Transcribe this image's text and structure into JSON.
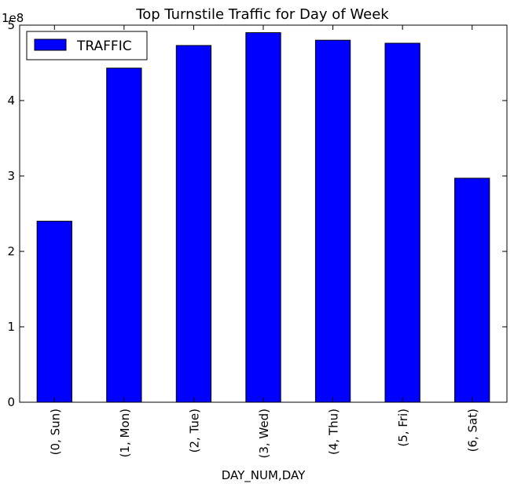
{
  "chart_data": {
    "type": "bar",
    "title": "Top Turnstile Traffic for Day of Week",
    "xlabel": "DAY_NUM,DAY",
    "ylabel": "",
    "y_offset_label": "1e8",
    "ylim": [
      0,
      5
    ],
    "y_ticks": [
      "0",
      "1",
      "2",
      "3",
      "4",
      "5"
    ],
    "categories": [
      "(0, Sun)",
      "(1, Mon)",
      "(2, Tue)",
      "(3, Wed)",
      "(4, Thu)",
      "(5, Fri)",
      "(6, Sat)"
    ],
    "series": [
      {
        "name": "TRAFFIC",
        "values": [
          2.4,
          4.43,
          4.73,
          4.9,
          4.8,
          4.76,
          2.97
        ],
        "color": "#0000ff"
      }
    ],
    "legend_position": "top-left",
    "grid": false
  }
}
